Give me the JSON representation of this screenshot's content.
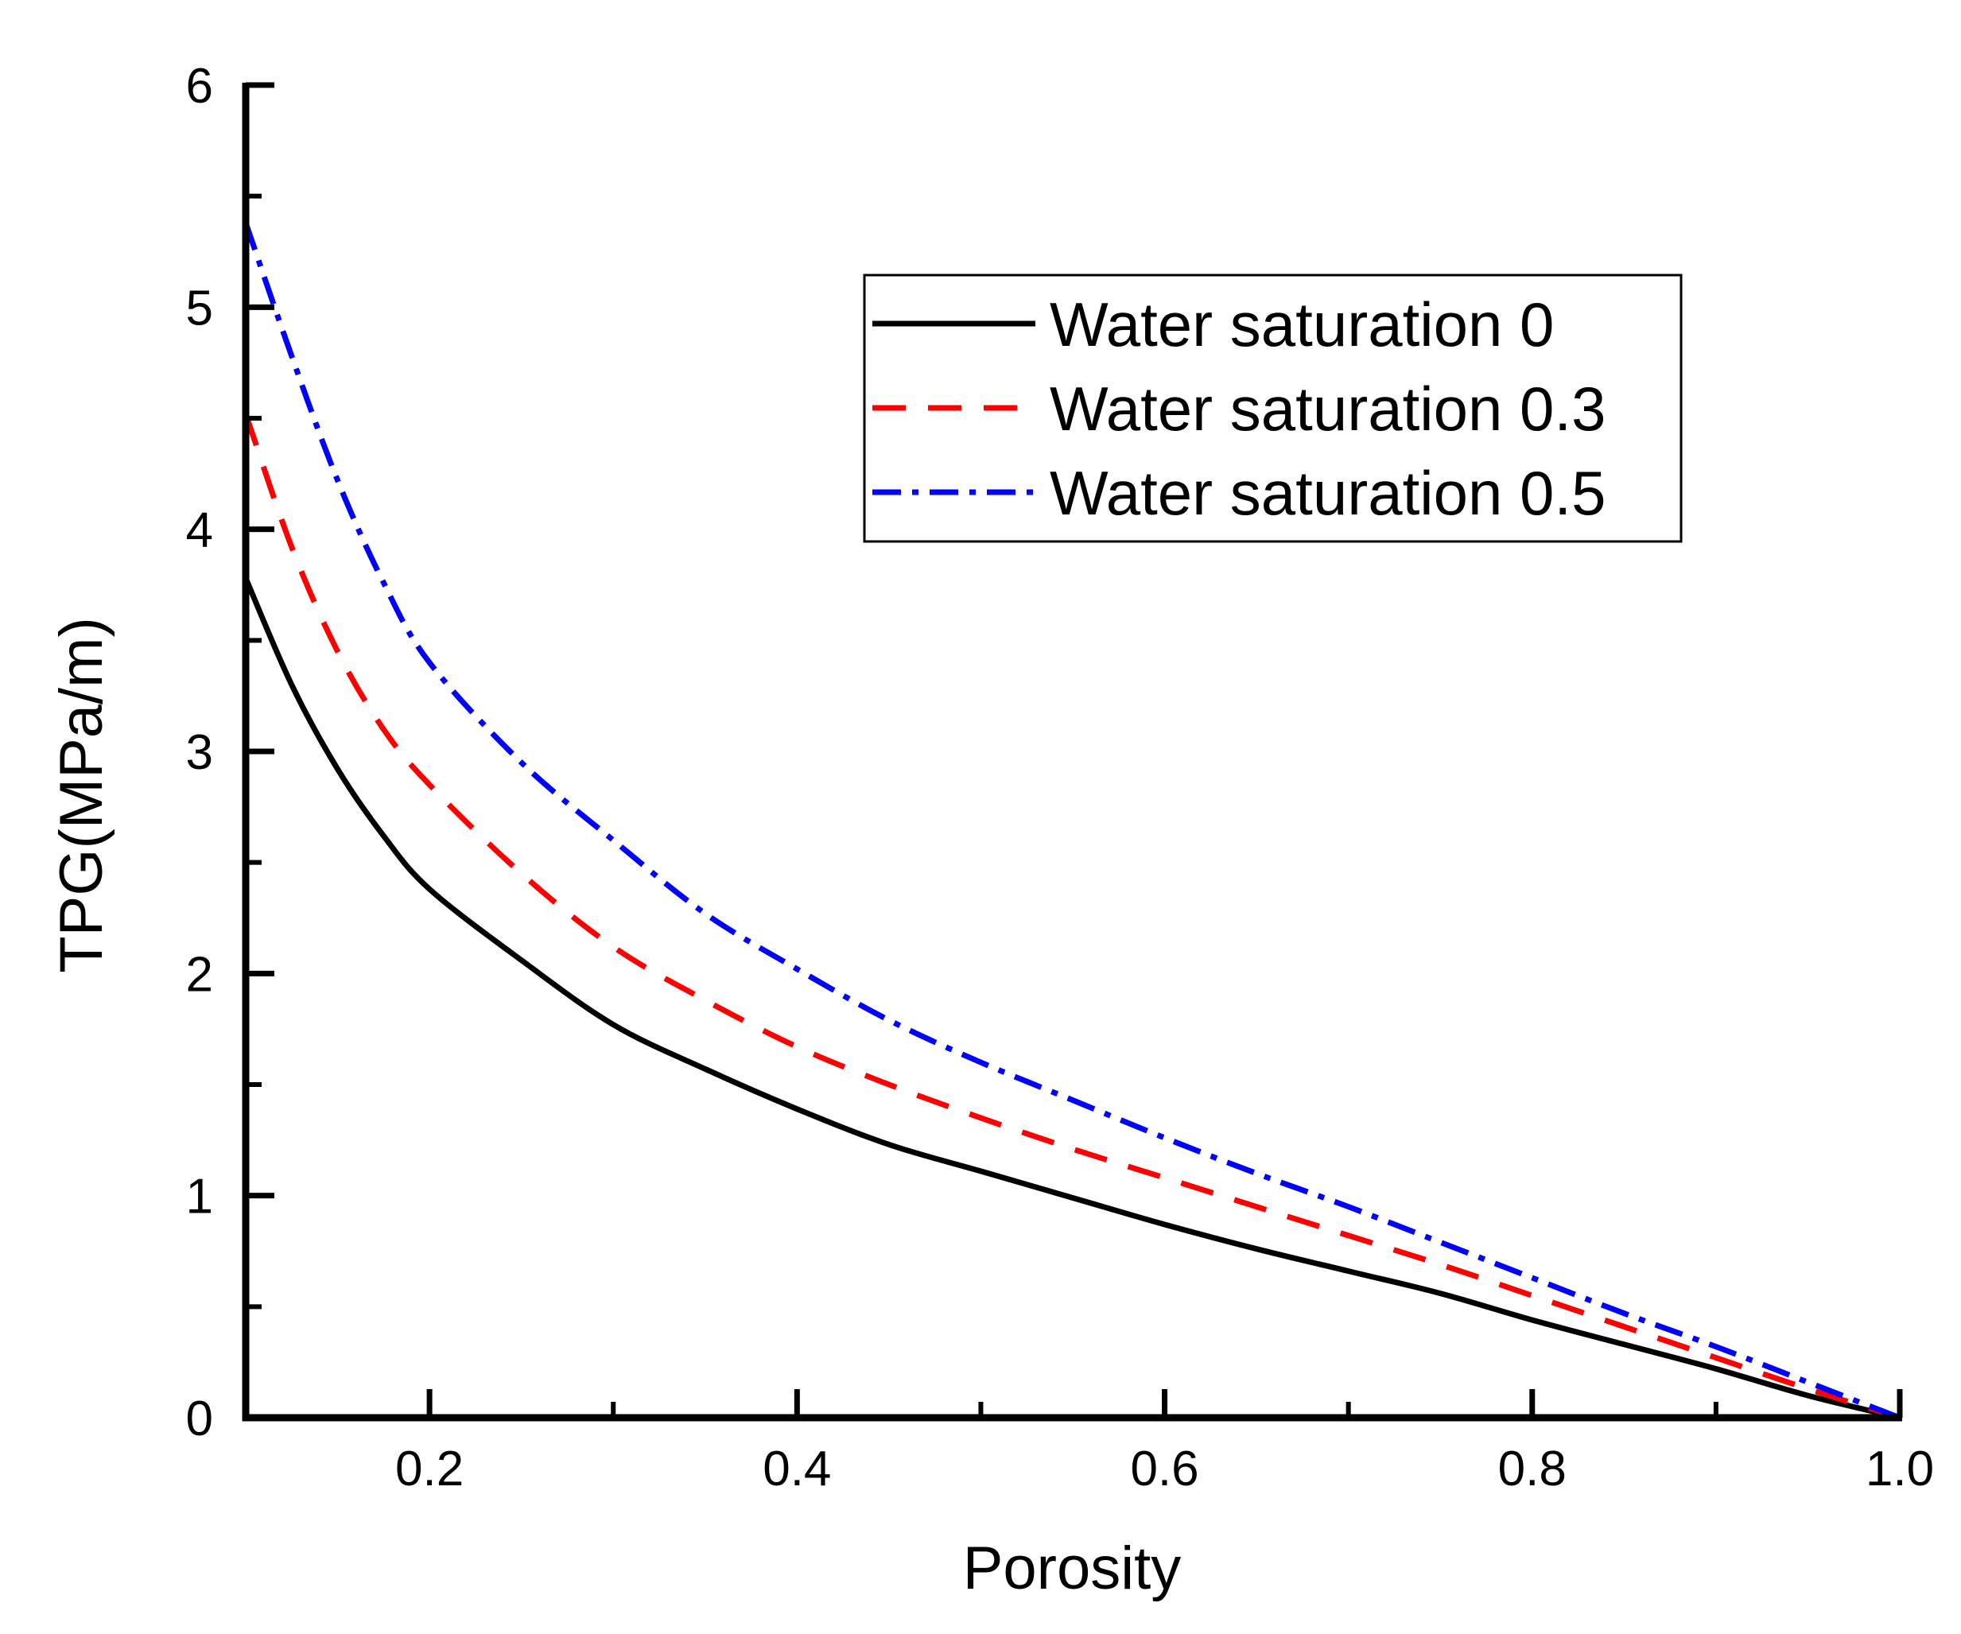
{
  "chart_data": {
    "type": "line",
    "title": "",
    "xlabel": "Porosity",
    "ylabel": "TPG(MPa/m)",
    "xlim": [
      0.1,
      1.0
    ],
    "ylim": [
      0,
      6
    ],
    "x_major_ticks": [
      0.2,
      0.4,
      0.6,
      0.8,
      1.0
    ],
    "x_tick_labels": [
      "0.2",
      "0.4",
      "0.6",
      "0.8",
      "1.0"
    ],
    "x_minor_ticks": [
      0.3,
      0.5,
      0.7,
      0.9
    ],
    "y_major_ticks": [
      0,
      1,
      2,
      3,
      4,
      5,
      6
    ],
    "y_tick_labels": [
      "0",
      "1",
      "2",
      "3",
      "4",
      "5",
      "6"
    ],
    "y_minor_ticks": [
      0.5,
      1.5,
      2.5,
      3.5,
      4.5,
      5.5
    ],
    "grid": false,
    "legend_position": "top-right",
    "x": [
      0.1,
      0.125,
      0.15,
      0.175,
      0.2,
      0.25,
      0.3,
      0.35,
      0.4,
      0.45,
      0.5,
      0.55,
      0.6,
      0.65,
      0.7,
      0.75,
      0.8,
      0.85,
      0.9,
      0.95,
      1.0
    ],
    "series": [
      {
        "name": "Water saturation 0",
        "color": "#000000",
        "style": "solid",
        "values": [
          3.78,
          3.3,
          2.92,
          2.62,
          2.38,
          2.06,
          1.77,
          1.57,
          1.39,
          1.23,
          1.11,
          0.99,
          0.87,
          0.76,
          0.66,
          0.56,
          0.44,
          0.33,
          0.22,
          0.1,
          0.0
        ]
      },
      {
        "name": "Water saturation 0.3",
        "color": "#ff0000",
        "style": "dashed",
        "values": [
          4.52,
          3.92,
          3.45,
          3.1,
          2.85,
          2.45,
          2.12,
          1.88,
          1.67,
          1.5,
          1.35,
          1.21,
          1.08,
          0.95,
          0.82,
          0.69,
          0.55,
          0.41,
          0.27,
          0.13,
          0.0
        ]
      },
      {
        "name": "Water saturation 0.5",
        "color": "#0000ff",
        "style": "dashdot",
        "values": [
          5.38,
          4.78,
          4.22,
          3.76,
          3.4,
          2.95,
          2.6,
          2.27,
          2.02,
          1.79,
          1.6,
          1.43,
          1.26,
          1.1,
          0.95,
          0.79,
          0.63,
          0.47,
          0.32,
          0.16,
          0.0
        ]
      }
    ]
  }
}
